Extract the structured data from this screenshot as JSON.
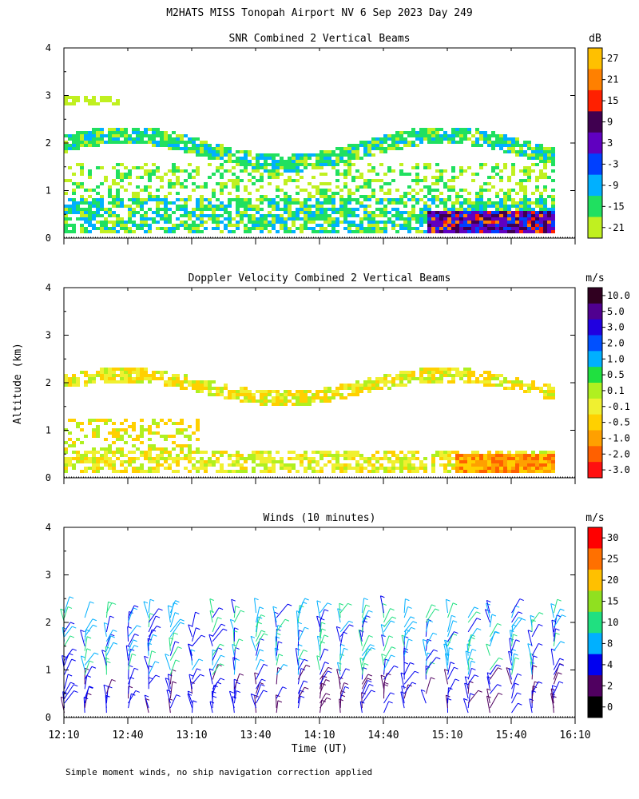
{
  "title": "M2HATS MISS Tonopah Airport NV   6 Sep 2023 Day 249",
  "ylabel": "Altitude (km)",
  "xlabel": "Time (UT)",
  "footnote": "Simple moment winds, no ship navigation correction applied",
  "x_ticks": [
    "12:10",
    "12:40",
    "13:10",
    "13:40",
    "14:10",
    "14:40",
    "15:10",
    "15:40",
    "16:10"
  ],
  "y_ticks": [
    "0",
    "1",
    "2",
    "3",
    "4"
  ],
  "chart_data": [
    {
      "type": "heatmap",
      "title": "SNR Combined 2 Vertical Beams",
      "units": "dB",
      "xlim": [
        "12:10",
        "16:10"
      ],
      "ylim": [
        0,
        4
      ],
      "colorbar_labels": [
        "27",
        "21",
        "15",
        "9",
        "3",
        "-3",
        "-9",
        "-15",
        "-21"
      ],
      "colorbar_colors": [
        "#ffc000",
        "#ff8000",
        "#ff2000",
        "#400050",
        "#6000c0",
        "#0040ff",
        "#00b0ff",
        "#20e060",
        "#c0f020"
      ],
      "features": [
        {
          "name": "persistent layer",
          "altitude_km": [
            1.6,
            2.4
          ],
          "snr_db": [
            -15,
            -9
          ]
        },
        {
          "name": "boundary layer",
          "altitude_km": [
            0.1,
            0.9
          ],
          "snr_db": [
            -21,
            -15
          ]
        },
        {
          "name": "afternoon convective return",
          "time": [
            "15:00",
            "16:00"
          ],
          "altitude_km": [
            0.1,
            0.8
          ],
          "snr_db": [
            3,
            27
          ]
        }
      ]
    },
    {
      "type": "heatmap",
      "title": "Doppler Velocity Combined 2 Vertical Beams",
      "units": "m/s",
      "xlim": [
        "12:10",
        "16:10"
      ],
      "ylim": [
        0,
        4
      ],
      "colorbar_labels": [
        "10.0",
        "5.0",
        "3.0",
        "2.0",
        "1.0",
        "0.5",
        "0.1",
        "-0.1",
        "-0.5",
        "-1.0",
        "-2.0",
        "-3.0"
      ],
      "colorbar_colors": [
        "#300020",
        "#500090",
        "#2000e0",
        "#0050ff",
        "#00b0ff",
        "#20e040",
        "#b0f020",
        "#f0f030",
        "#ffd000",
        "#ffa000",
        "#ff6000",
        "#ff1010"
      ],
      "features": [
        {
          "name": "upper layer",
          "altitude_km": [
            1.7,
            2.4
          ],
          "velocity_ms": [
            -1.0,
            0.1
          ]
        },
        {
          "name": "boundary layer",
          "altitude_km": [
            0.1,
            1.2
          ],
          "velocity_ms": [
            -0.5,
            0.1
          ]
        },
        {
          "name": "afternoon descent",
          "time": [
            "15:10",
            "16:00"
          ],
          "altitude_km": [
            0.1,
            0.8
          ],
          "velocity_ms": [
            -2.0,
            -0.5
          ]
        }
      ]
    },
    {
      "type": "wind_barbs",
      "title": "Winds (10 minutes)",
      "units": "m/s",
      "xlim": [
        "12:10",
        "16:10"
      ],
      "ylim": [
        0,
        4
      ],
      "colorbar_labels": [
        "30",
        "25",
        "20",
        "15",
        "10",
        "8",
        "4",
        "2",
        "0"
      ],
      "colorbar_colors": [
        "#ff0000",
        "#ff7000",
        "#ffc000",
        "#90e020",
        "#20e080",
        "#00b0ff",
        "#0000f0",
        "#500060",
        "#000000"
      ],
      "interval_minutes": 10,
      "profiles_hours_utc": [
        12.17,
        12.33,
        12.5,
        12.67,
        12.83,
        13.0,
        13.17,
        13.33,
        13.5,
        13.67,
        13.83,
        14.0,
        14.17,
        14.33,
        14.5,
        14.67,
        14.83,
        15.0,
        15.17,
        15.33,
        15.5,
        15.67,
        15.83,
        16.0
      ]
    }
  ]
}
